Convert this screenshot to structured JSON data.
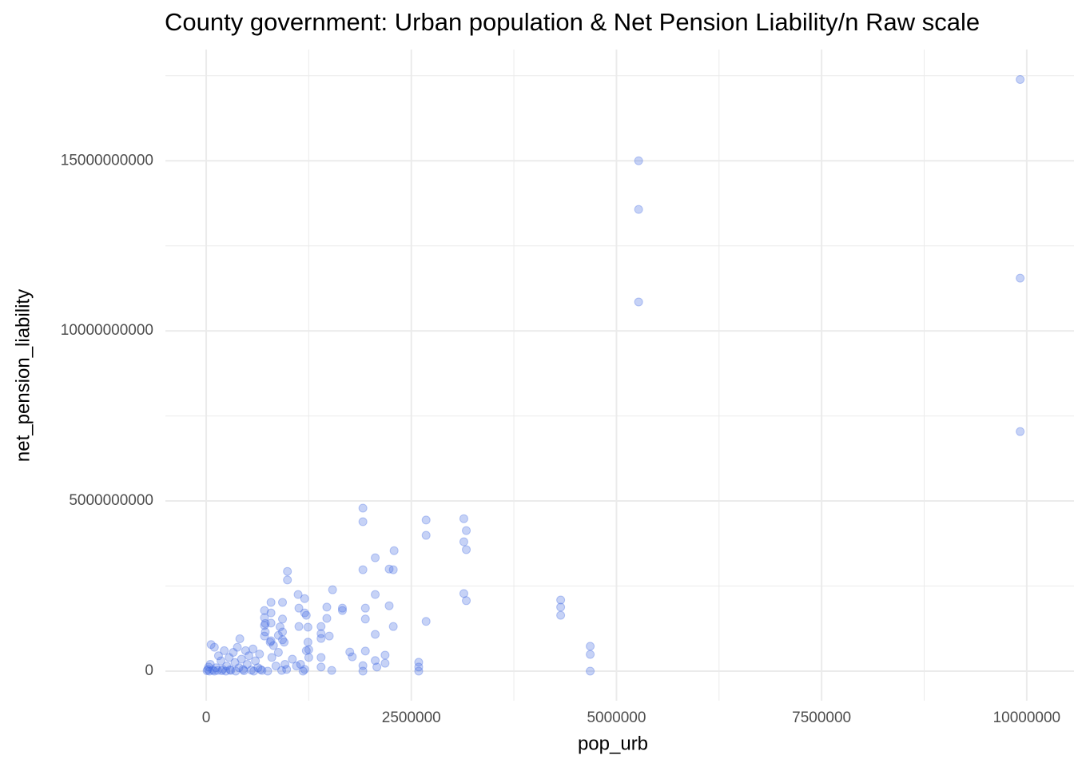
{
  "chart_data": {
    "type": "scatter",
    "title": "County government: Urban population & Net Pension Liability/n Raw scale",
    "x_label": "pop_urb",
    "y_label": "net_pension_liability",
    "color": "#4169e1",
    "xlim": [
      -497000,
      10430000
    ],
    "ylim": [
      -870000000,
      18270000000
    ],
    "xticks": [
      0,
      2500000,
      5000000,
      7500000,
      10000000
    ],
    "yticks": [
      0,
      5000000000,
      10000000000,
      15000000000
    ],
    "grid": true,
    "x": [
      9920000,
      9920000,
      9920000,
      5270000,
      5270000,
      5270000,
      4680000,
      4680000,
      4680000,
      4320000,
      4320000,
      4320000,
      3140000,
      3170000,
      3140000,
      3170000,
      3140000,
      3170000,
      2680000,
      2680000,
      2680000,
      2290000,
      2230000,
      2280000,
      2060000,
      2060000,
      1910000,
      1910000,
      1910000,
      1940000,
      1940000,
      2230000,
      2280000,
      2060000,
      1540000,
      1470000,
      1470000,
      1500000,
      1400000,
      1400000,
      1400000,
      1400000,
      1400000,
      1530000,
      1120000,
      1200000,
      1200000,
      1220000,
      1130000,
      1130000,
      1240000,
      1240000,
      1250000,
      1250000,
      990000,
      990000,
      930000,
      930000,
      930000,
      930000,
      790000,
      790000,
      790000,
      790000,
      710000,
      710000,
      710000,
      710000,
      1660000,
      1660000,
      1750000,
      1780000,
      2180000,
      2180000,
      2060000,
      2080000,
      1910000,
      1910000,
      1940000,
      2590000,
      2590000,
      2590000,
      20000,
      30000,
      50000,
      60000,
      100000,
      120000,
      150000,
      180000,
      200000,
      220000,
      250000,
      280000,
      300000,
      330000,
      350000,
      380000,
      400000,
      410000,
      430000,
      450000,
      480000,
      500000,
      520000,
      550000,
      570000,
      600000,
      630000,
      650000,
      680000,
      720000,
      720000,
      780000,
      800000,
      820000,
      850000,
      880000,
      880000,
      900000,
      950000,
      960000,
      980000,
      1050000,
      1100000,
      1150000,
      1200000,
      1220000,
      10000,
      40000,
      80000,
      100000,
      140000,
      190000,
      240000,
      290000,
      360000,
      460000,
      580000,
      660000,
      750000,
      920000,
      1180000
    ],
    "y": [
      17390000000,
      11550000000,
      7040000000,
      15000000000,
      13570000000,
      10850000000,
      730000000,
      490000000,
      0,
      2090000000,
      1880000000,
      1640000000,
      4480000000,
      4130000000,
      3800000000,
      3570000000,
      2280000000,
      2070000000,
      4440000000,
      3990000000,
      1460000000,
      3540000000,
      3000000000,
      2980000000,
      3330000000,
      2250000000,
      4790000000,
      4390000000,
      2980000000,
      1850000000,
      1530000000,
      1920000000,
      1310000000,
      1080000000,
      2390000000,
      1880000000,
      1550000000,
      1030000000,
      1310000000,
      1100000000,
      960000000,
      400000000,
      120000000,
      20000000,
      2250000000,
      2130000000,
      1710000000,
      1640000000,
      1850000000,
      1310000000,
      1290000000,
      850000000,
      630000000,
      400000000,
      2930000000,
      2680000000,
      2020000000,
      1530000000,
      1150000000,
      920000000,
      2020000000,
      1710000000,
      1410000000,
      890000000,
      1780000000,
      1570000000,
      1340000000,
      1030000000,
      1850000000,
      1780000000,
      560000000,
      420000000,
      470000000,
      230000000,
      310000000,
      120000000,
      160000000,
      0,
      590000000,
      260000000,
      120000000,
      0,
      50000000,
      120000000,
      200000000,
      780000000,
      700000000,
      100000000,
      450000000,
      300000000,
      50000000,
      600000000,
      150000000,
      400000000,
      20000000,
      550000000,
      250000000,
      700000000,
      100000000,
      950000000,
      350000000,
      50000000,
      600000000,
      200000000,
      450000000,
      30000000,
      650000000,
      300000000,
      100000000,
      500000000,
      20000000,
      1400000000,
      1150000000,
      850000000,
      400000000,
      750000000,
      150000000,
      1050000000,
      550000000,
      1300000000,
      850000000,
      200000000,
      50000000,
      350000000,
      150000000,
      200000000,
      50000000,
      600000000,
      10000000,
      0,
      30000000,
      0,
      20000000,
      10000000,
      0,
      40000000,
      0,
      10000000,
      0,
      50000000,
      0,
      20000000,
      0
    ]
  }
}
